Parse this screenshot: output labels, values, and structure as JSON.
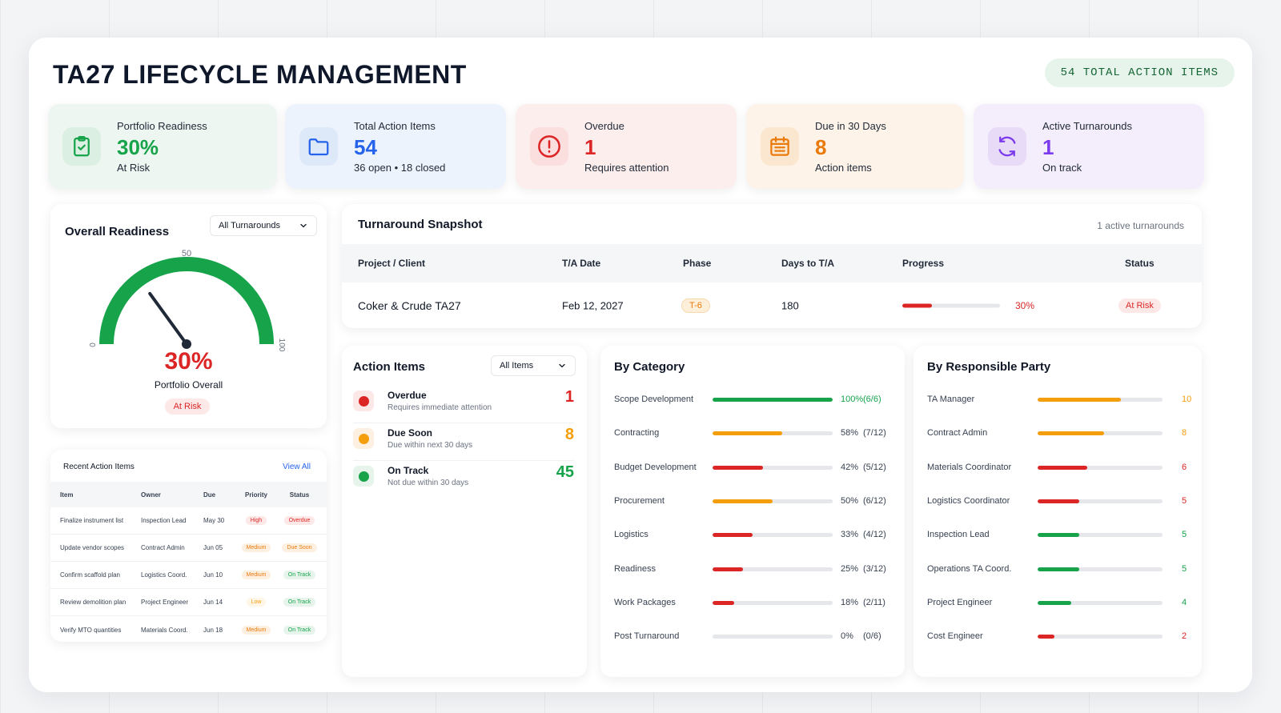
{
  "header": {
    "title": "TA27 LIFECYCLE MANAGEMENT",
    "total_pill": "54 TOTAL ACTION ITEMS"
  },
  "kpis": [
    {
      "label": "Portfolio Readiness",
      "value": "30%",
      "sub": "At Risk",
      "icon": "clipboard-check-icon"
    },
    {
      "label": "Total Action Items",
      "value": "54",
      "sub": "36 open • 18 closed",
      "icon": "folder-icon"
    },
    {
      "label": "Overdue",
      "value": "1",
      "sub": "Requires attention",
      "icon": "alert-circle-icon"
    },
    {
      "label": "Due in 30 Days",
      "value": "8",
      "sub": "Action items",
      "icon": "calendar-icon"
    },
    {
      "label": "Active Turnarounds",
      "value": "1",
      "sub": "On track",
      "icon": "refresh-icon"
    }
  ],
  "readiness": {
    "title": "Overall Readiness",
    "filter": "All Turnarounds",
    "gauge_min": "0",
    "gauge_mid": "50",
    "gauge_max": "100",
    "gauge_fraction": 0.3,
    "value": "30%",
    "label": "Portfolio Overall",
    "badge": "At Risk"
  },
  "recent": {
    "title": "Recent Action Items",
    "view_all": "View All",
    "columns": [
      "Item",
      "Owner",
      "Due",
      "Priority",
      "Status"
    ],
    "rows": [
      {
        "item": "Finalize instrument list",
        "owner": "Inspection Lead",
        "due": "May 30",
        "priority": "High",
        "status": "Overdue"
      },
      {
        "item": "Update vendor scopes",
        "owner": "Contract Admin",
        "due": "Jun 05",
        "priority": "Medium",
        "status": "Due Soon"
      },
      {
        "item": "Confirm scaffold plan",
        "owner": "Logistics Coord.",
        "due": "Jun 10",
        "priority": "Medium",
        "status": "On Track"
      },
      {
        "item": "Review demolition plan",
        "owner": "Project Engineer",
        "due": "Jun 14",
        "priority": "Low",
        "status": "On Track"
      },
      {
        "item": "Verify MTO quantities",
        "owner": "Materials Coord.",
        "due": "Jun 18",
        "priority": "Medium",
        "status": "On Track"
      }
    ]
  },
  "snapshot": {
    "title": "Turnaround Snapshot",
    "count": "1 active turnarounds",
    "columns": [
      "Project / Client",
      "T/A Date",
      "Phase",
      "Days to T/A",
      "Progress",
      "Status"
    ],
    "row": {
      "project": "Coker & Crude TA27",
      "date": "Feb 12, 2027",
      "phase": "T-6",
      "days": "180",
      "progress_label": "30%",
      "progress_fraction": 0.3,
      "status": "At Risk"
    }
  },
  "actions": {
    "title": "Action Items",
    "filter": "All Items",
    "items": [
      {
        "title": "Overdue",
        "sub": "Requires immediate attention",
        "count": "1",
        "color": "#dc2626",
        "bg": "#fde8e8"
      },
      {
        "title": "Due Soon",
        "sub": "Due within next 30 days",
        "count": "8",
        "color": "#f59e0b",
        "bg": "#fdf0e1"
      },
      {
        "title": "On Track",
        "sub": "Not due within 30 days",
        "count": "45",
        "color": "#16a34a",
        "bg": "#e6f4ec"
      }
    ]
  },
  "by_category": {
    "title": "By Category",
    "rows": [
      {
        "label": "Scope Development",
        "pct": "100%",
        "ratio": "(6/6)",
        "fraction": 1.0,
        "color": "#16a34a"
      },
      {
        "label": "Contracting",
        "pct": "58%",
        "ratio": "(7/12)",
        "fraction": 0.58,
        "color": "#f59e0b"
      },
      {
        "label": "Budget Development",
        "pct": "42%",
        "ratio": "(5/12)",
        "fraction": 0.42,
        "color": "#dc2626"
      },
      {
        "label": "Procurement",
        "pct": "50%",
        "ratio": "(6/12)",
        "fraction": 0.5,
        "color": "#f59e0b"
      },
      {
        "label": "Logistics",
        "pct": "33%",
        "ratio": "(4/12)",
        "fraction": 0.33,
        "color": "#dc2626"
      },
      {
        "label": "Readiness",
        "pct": "25%",
        "ratio": "(3/12)",
        "fraction": 0.25,
        "color": "#dc2626"
      },
      {
        "label": "Work Packages",
        "pct": "18%",
        "ratio": "(2/11)",
        "fraction": 0.18,
        "color": "#dc2626"
      },
      {
        "label": "Post Turnaround",
        "pct": "0%",
        "ratio": "(0/6)",
        "fraction": 0.0,
        "color": "#dc2626"
      }
    ]
  },
  "by_party": {
    "title": "By Responsible Party",
    "max": 15,
    "rows": [
      {
        "label": "TA Manager",
        "count": "10",
        "value": 10,
        "color": "#f59e0b"
      },
      {
        "label": "Contract Admin",
        "count": "8",
        "value": 8,
        "color": "#f59e0b"
      },
      {
        "label": "Materials Coordinator",
        "count": "6",
        "value": 6,
        "color": "#dc2626"
      },
      {
        "label": "Logistics Coordinator",
        "count": "5",
        "value": 5,
        "color": "#dc2626"
      },
      {
        "label": "Inspection Lead",
        "count": "5",
        "value": 5,
        "color": "#16a34a"
      },
      {
        "label": "Operations TA Coord.",
        "count": "5",
        "value": 5,
        "color": "#16a34a"
      },
      {
        "label": "Project Engineer",
        "count": "4",
        "value": 4,
        "color": "#16a34a"
      },
      {
        "label": "Cost Engineer",
        "count": "2",
        "value": 2,
        "color": "#dc2626"
      }
    ]
  }
}
